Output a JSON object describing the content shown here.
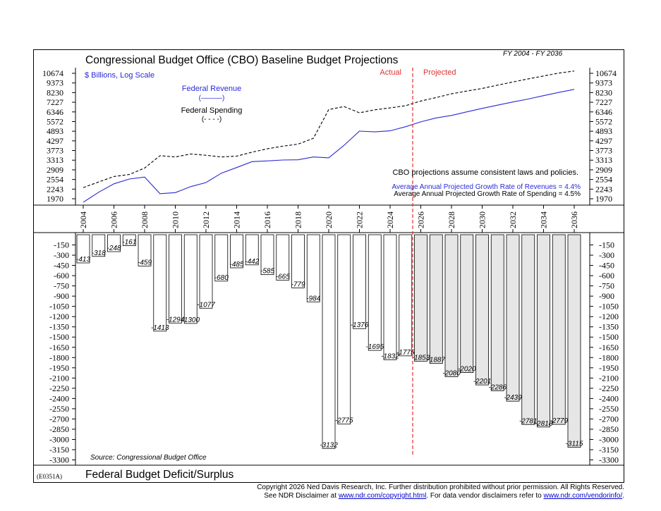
{
  "header": {
    "title": "Congressional Budget Office (CBO) Baseline Budget Projections",
    "fy_range": "FY 2004 - FY 2036",
    "bottom_title": "Federal Budget Deficit/Surplus",
    "chart_code": "(E0351A)"
  },
  "footer": {
    "copyright": "Copyright 2026 Ned Davis Research, Inc.  Further distribution prohibited without prior permission.  All Rights Reserved.",
    "disclaimer_prefix": "See NDR Disclaimer at ",
    "disclaimer_link": "www.ndr.com/copyright.html",
    "disclaimer_mid": ". For data vendor disclaimers refer to ",
    "vendor_link": "www.ndr.com/vendorinfo/",
    "disclaimer_end": "."
  },
  "colors": {
    "revenue": "#2a2ad8",
    "spending": "#000000",
    "divider": "#e03030",
    "projected_bar": "#e6e6e6",
    "actual_bar": "#ffffff"
  },
  "chart_data": [
    {
      "type": "line",
      "yscale": "log",
      "ylabel": "$ Billions, Log Scale",
      "yticks": [
        1970,
        2243,
        2554,
        2909,
        3313,
        3773,
        4297,
        4893,
        5572,
        6346,
        7227,
        8230,
        9373,
        10674
      ],
      "ylim": [
        1800,
        11000
      ],
      "x": [
        2004,
        2005,
        2006,
        2007,
        2008,
        2009,
        2010,
        2011,
        2012,
        2013,
        2014,
        2015,
        2016,
        2017,
        2018,
        2019,
        2020,
        2021,
        2022,
        2023,
        2024,
        2025,
        2026,
        2027,
        2028,
        2029,
        2030,
        2031,
        2032,
        2033,
        2034,
        2035,
        2036
      ],
      "series": [
        {
          "name": "Federal Revenue",
          "legend_sample": "(———)",
          "values": [
            1880,
            2150,
            2410,
            2570,
            2640,
            2110,
            2140,
            2320,
            2450,
            2780,
            3000,
            3250,
            3280,
            3320,
            3330,
            3460,
            3420,
            4050,
            4900,
            4850,
            4920,
            5200,
            5550,
            5850,
            6050,
            6350,
            6650,
            6950,
            7250,
            7550,
            7900,
            8250,
            8600
          ]
        },
        {
          "name": "Federal Spending",
          "legend_sample": "(- - - -)",
          "values": [
            2290,
            2470,
            2660,
            2730,
            2980,
            3520,
            3460,
            3600,
            3540,
            3460,
            3500,
            3690,
            3860,
            4000,
            4110,
            4450,
            6550,
            6820,
            6270,
            6530,
            6700,
            6900,
            7350,
            7700,
            8100,
            8400,
            8700,
            9100,
            9500,
            9900,
            10300,
            10700,
            11000
          ]
        }
      ],
      "annotations": {
        "actual": "Actual",
        "projected": "Projected",
        "assumption": "CBO projections assume consistent laws and policies.",
        "revenue_growth": "Average Annual Projected Growth Rate of Revenues = 4.4%",
        "spending_growth": "Average Annual Projected Growth Rate of Spending = 4.5%"
      },
      "xticks": [
        "2004",
        "2006",
        "2008",
        "2010",
        "2012",
        "2014",
        "2016",
        "2018",
        "2020",
        "2022",
        "2024",
        "2026",
        "2028",
        "2030",
        "2032",
        "2034",
        "2036"
      ]
    },
    {
      "type": "bar",
      "ylabel": "",
      "yticks": [
        -150,
        -300,
        -450,
        -600,
        -750,
        -900,
        -1050,
        -1200,
        -1350,
        -1500,
        -1650,
        -1800,
        -1950,
        -2100,
        -2250,
        -2400,
        -2550,
        -2700,
        -2850,
        -3000,
        -3150,
        -3300
      ],
      "ylim": [
        -3300,
        0
      ],
      "categories": [
        2004,
        2005,
        2006,
        2007,
        2008,
        2009,
        2010,
        2011,
        2012,
        2013,
        2014,
        2015,
        2016,
        2017,
        2018,
        2019,
        2020,
        2021,
        2022,
        2023,
        2024,
        2025,
        2026,
        2027,
        2028,
        2029,
        2030,
        2031,
        2032,
        2033,
        2034,
        2035,
        2036
      ],
      "values": [
        -413,
        -318,
        -248,
        -161,
        -459,
        -1413,
        -1294,
        -1300,
        -1077,
        -680,
        -485,
        -442,
        -585,
        -665,
        -779,
        -984,
        -3132,
        -2775,
        -1376,
        -1695,
        -1832,
        -1775,
        -1853,
        -1887,
        -2080,
        -2020,
        -2201,
        -2286,
        -2439,
        -2781,
        -2818,
        -2779,
        -3115
      ],
      "labels": [
        "-413",
        "-318",
        "-248",
        "-161",
        "-459",
        "-1413",
        "-1294",
        "-1300",
        "-1077",
        "-680",
        "-485",
        "-442",
        "-585",
        "-665",
        "-779",
        "-984",
        "-3132",
        "-2775",
        "-1376",
        "-1695",
        "-1832",
        "-1775",
        "-1853",
        "-1887",
        "-2080",
        "-2020",
        "-2201",
        "-2286",
        "-2439",
        "-2781",
        "-2818",
        "-2779",
        "-3115"
      ],
      "projected_from": 2026,
      "source": "Source: Congressional Budget Office"
    }
  ]
}
